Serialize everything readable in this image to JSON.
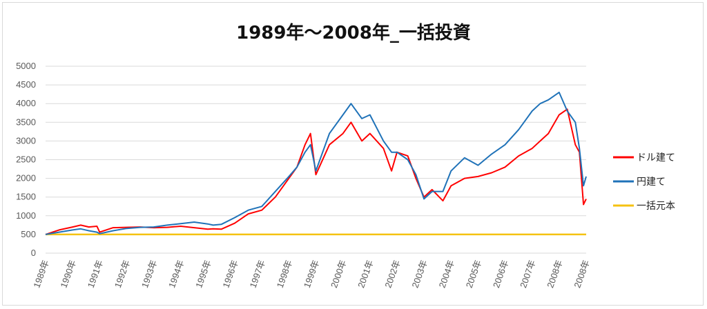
{
  "chart_data": {
    "type": "line",
    "title": "1989年～2008年_一括投資",
    "xlabel": "",
    "ylabel": "",
    "ylim": [
      0,
      5000
    ],
    "y_ticks": [
      "0",
      "500",
      "1000",
      "1500",
      "2000",
      "2500",
      "3000",
      "3500",
      "4000",
      "4500",
      "5000"
    ],
    "x_ticks": [
      "1989年",
      "1990年",
      "1991年",
      "1992年",
      "1993年",
      "1994年",
      "1995年",
      "1996年",
      "1997年",
      "1998年",
      "1999年",
      "2000年",
      "2001年",
      "2002年",
      "2003年",
      "2004年",
      "2005年",
      "2006年",
      "2007年",
      "2008年",
      "2008年"
    ],
    "x": [
      1989,
      1989.5,
      1990,
      1990.3,
      1990.6,
      1990.9,
      1991,
      1991.5,
      1992,
      1992.5,
      1993,
      1993.5,
      1994,
      1994.5,
      1995,
      1995.2,
      1995.5,
      1996,
      1996.5,
      1997,
      1997.5,
      1998,
      1998.3,
      1998.6,
      1998.8,
      1999,
      1999.5,
      2000,
      2000.3,
      2000.7,
      2001,
      2001.5,
      2001.8,
      2002,
      2002.4,
      2002.7,
      2003,
      2003.3,
      2003.7,
      2004,
      2004.5,
      2005,
      2005.5,
      2006,
      2006.5,
      2007,
      2007.3,
      2007.6,
      2008,
      2008.3,
      2008.6,
      2008.75,
      2008.9,
      2009
    ],
    "series": [
      {
        "name": "ドル建て",
        "color": "#ff0000",
        "values": [
          500,
          620,
          700,
          750,
          700,
          720,
          560,
          680,
          690,
          700,
          680,
          690,
          720,
          680,
          640,
          650,
          640,
          800,
          1050,
          1150,
          1500,
          2000,
          2300,
          2900,
          3200,
          2100,
          2900,
          3200,
          3500,
          3000,
          3200,
          2800,
          2200,
          2700,
          2600,
          2000,
          1500,
          1700,
          1400,
          1800,
          2000,
          2050,
          2150,
          2300,
          2600,
          2800,
          3000,
          3200,
          3700,
          3850,
          2900,
          2700,
          1300,
          1450
        ]
      },
      {
        "name": "円建て",
        "color": "#1f72b8",
        "values": [
          500,
          560,
          620,
          650,
          600,
          560,
          520,
          600,
          660,
          690,
          700,
          750,
          790,
          830,
          780,
          750,
          770,
          950,
          1150,
          1250,
          1650,
          2050,
          2300,
          2700,
          2900,
          2200,
          3200,
          3700,
          4000,
          3600,
          3700,
          3000,
          2700,
          2700,
          2500,
          2100,
          1450,
          1650,
          1650,
          2200,
          2550,
          2350,
          2650,
          2900,
          3300,
          3800,
          4000,
          4100,
          4300,
          3800,
          3500,
          2800,
          1800,
          2050
        ]
      },
      {
        "name": "一括元本",
        "color": "#f5c211",
        "values": [
          500,
          500,
          500,
          500,
          500,
          500,
          500,
          500,
          500,
          500,
          500,
          500,
          500,
          500,
          500,
          500,
          500,
          500,
          500,
          500,
          500,
          500,
          500,
          500,
          500,
          500,
          500,
          500,
          500,
          500,
          500,
          500,
          500,
          500,
          500,
          500,
          500,
          500,
          500,
          500,
          500,
          500,
          500,
          500,
          500,
          500,
          500,
          500,
          500,
          500,
          500,
          500,
          500,
          500
        ]
      }
    ],
    "legend_position": "right",
    "grid": true,
    "gridline_color": "#d9d9d9"
  }
}
